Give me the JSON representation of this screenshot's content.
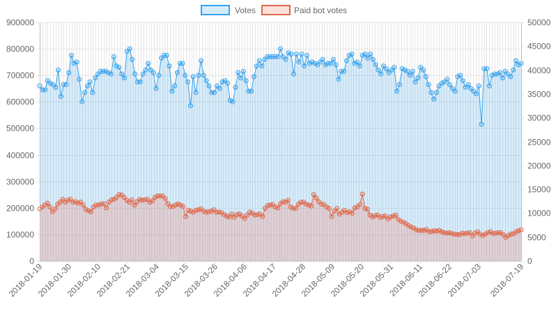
{
  "chart_data": {
    "type": "line",
    "title": "",
    "xlabel": "",
    "ylabel": "",
    "legend_position": "top-center",
    "grid": true,
    "x_ticks": [
      "2018-01-19",
      "2018-01-30",
      "2018-02-10",
      "2018-02-21",
      "2018-03-04",
      "2018-03-15",
      "2018-03-26",
      "2018-04-06",
      "2018-04-17",
      "2018-04-28",
      "2018-05-09",
      "2018-05-20",
      "2018-05-31",
      "2018-06-11",
      "2018-06-22",
      "2018-07-03",
      "2018-07-19"
    ],
    "x_range": [
      "2018-01-19",
      "2018-07-19"
    ],
    "y_left": {
      "min": 0,
      "max": 900000,
      "ticks": [
        "0",
        "100000",
        "200000",
        "300000",
        "400000",
        "500000",
        "600000",
        "700000",
        "800000",
        "900000"
      ]
    },
    "y_right": {
      "min": 0,
      "max": 50000,
      "ticks": [
        "0",
        "5000",
        "10000",
        "15000",
        "20000",
        "25000",
        "30000",
        "35000",
        "40000",
        "45000",
        "50000"
      ]
    },
    "series": [
      {
        "name": "Votes",
        "axis": "left",
        "color": "#36a2eb",
        "fill": "rgba(54,162,235,0.2)",
        "x_start": "2018-01-19",
        "x_end": "2018-07-19",
        "values": [
          660000,
          645000,
          645000,
          680000,
          670000,
          665000,
          655000,
          720000,
          620000,
          665000,
          665000,
          710000,
          775000,
          745000,
          750000,
          685000,
          600000,
          635000,
          660000,
          675000,
          635000,
          690000,
          705000,
          715000,
          715000,
          715000,
          710000,
          705000,
          770000,
          735000,
          730000,
          705000,
          690000,
          790000,
          800000,
          760000,
          705000,
          675000,
          675000,
          705000,
          720000,
          745000,
          720000,
          710000,
          650000,
          700000,
          765000,
          775000,
          775000,
          735000,
          640000,
          660000,
          710000,
          745000,
          745000,
          700000,
          675000,
          585000,
          695000,
          635000,
          700000,
          755000,
          700000,
          680000,
          660000,
          635000,
          635000,
          660000,
          650000,
          675000,
          680000,
          670000,
          605000,
          600000,
          655000,
          710000,
          690000,
          715000,
          680000,
          640000,
          640000,
          695000,
          735000,
          755000,
          735000,
          760000,
          770000,
          770000,
          770000,
          770000,
          770000,
          800000,
          770000,
          760000,
          785000,
          780000,
          705000,
          780000,
          750000,
          780000,
          735000,
          775000,
          745000,
          750000,
          745000,
          740000,
          750000,
          760000,
          740000,
          745000,
          745000,
          760000,
          740000,
          685000,
          715000,
          715000,
          755000,
          775000,
          780000,
          745000,
          750000,
          735000,
          775000,
          780000,
          765000,
          780000,
          760000,
          740000,
          720000,
          705000,
          735000,
          725000,
          710000,
          720000,
          730000,
          640000,
          665000,
          725000,
          720000,
          715000,
          700000,
          715000,
          675000,
          690000,
          730000,
          720000,
          695000,
          665000,
          635000,
          610000,
          635000,
          660000,
          670000,
          675000,
          685000,
          665000,
          650000,
          640000,
          695000,
          700000,
          680000,
          655000,
          665000,
          650000,
          640000,
          630000,
          660000,
          515000,
          725000,
          725000,
          660000,
          700000,
          705000,
          705000,
          710000,
          690000,
          715000,
          705000,
          695000,
          720000,
          755000,
          740000,
          745000
        ]
      },
      {
        "name": "Paid bot votes",
        "axis": "right",
        "color": "#d9684a",
        "fill": "rgba(255,99,71,0.2)",
        "x_start": "2018-01-19",
        "x_end": "2018-07-19",
        "values": [
          10900,
          11300,
          11700,
          12100,
          11300,
          10300,
          10900,
          11900,
          12300,
          12900,
          12300,
          12700,
          12900,
          12300,
          12400,
          12100,
          12300,
          11700,
          10800,
          10500,
          10300,
          11300,
          11700,
          11700,
          11900,
          12000,
          11100,
          12300,
          12800,
          12900,
          13300,
          13900,
          13800,
          13300,
          12700,
          12300,
          12800,
          11700,
          12400,
          12900,
          12700,
          12800,
          12900,
          12300,
          12600,
          13300,
          13600,
          13600,
          13600,
          13100,
          12000,
          11400,
          11400,
          11700,
          11900,
          11700,
          11400,
          9300,
          10600,
          10400,
          10200,
          10600,
          10700,
          10900,
          10400,
          10200,
          10300,
          10400,
          10700,
          10200,
          10200,
          10100,
          9700,
          9400,
          9200,
          9800,
          9100,
          9700,
          9800,
          9400,
          8900,
          9600,
          10200,
          10000,
          9600,
          9700,
          9800,
          9300,
          11000,
          11600,
          11700,
          11800,
          11300,
          11100,
          12000,
          12400,
          12300,
          12700,
          11300,
          11000,
          11000,
          11900,
          12300,
          12300,
          11900,
          11700,
          11500,
          13900,
          13200,
          12400,
          11900,
          11800,
          11300,
          11000,
          9300,
          10400,
          11000,
          9800,
          10200,
          10600,
          10100,
          10300,
          10000,
          11100,
          11300,
          11800,
          14000,
          11000,
          10800,
          9600,
          9200,
          9500,
          9600,
          9100,
          9300,
          9400,
          8800,
          9200,
          9400,
          9600,
          8700,
          8300,
          8100,
          7800,
          7400,
          7100,
          6900,
          6500,
          6400,
          6400,
          6400,
          6600,
          6100,
          6200,
          6300,
          6200,
          6400,
          6100,
          5900,
          5800,
          5900,
          5700,
          5600,
          5500,
          5500,
          5800,
          5700,
          5800,
          5900,
          5200,
          5800,
          6100,
          5600,
          5300,
          5600,
          5900,
          6100,
          5700,
          5800,
          5900,
          5900,
          5500,
          4900,
          5300,
          5600,
          5700,
          6100,
          6300,
          6500
        ]
      }
    ]
  }
}
